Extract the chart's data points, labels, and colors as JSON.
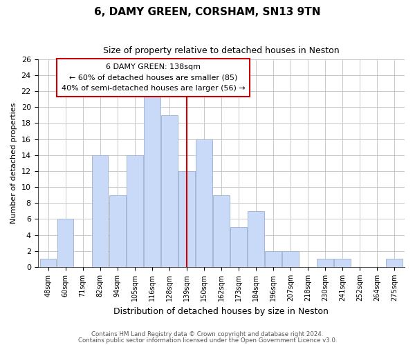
{
  "title": "6, DAMY GREEN, CORSHAM, SN13 9TN",
  "subtitle": "Size of property relative to detached houses in Neston",
  "xlabel": "Distribution of detached houses by size in Neston",
  "ylabel": "Number of detached properties",
  "bar_labels": [
    "48sqm",
    "60sqm",
    "71sqm",
    "82sqm",
    "94sqm",
    "105sqm",
    "116sqm",
    "128sqm",
    "139sqm",
    "150sqm",
    "162sqm",
    "173sqm",
    "184sqm",
    "196sqm",
    "207sqm",
    "218sqm",
    "230sqm",
    "241sqm",
    "252sqm",
    "264sqm",
    "275sqm"
  ],
  "bar_values": [
    1,
    6,
    0,
    14,
    9,
    14,
    22,
    19,
    12,
    16,
    9,
    5,
    7,
    2,
    2,
    0,
    1,
    1,
    0,
    0,
    1
  ],
  "bar_color": "#c9daf8",
  "bar_edge_color": "#a4b8d4",
  "highlight_index": 8,
  "highlight_line_color": "#cc0000",
  "ylim": [
    0,
    26
  ],
  "yticks": [
    0,
    2,
    4,
    6,
    8,
    10,
    12,
    14,
    16,
    18,
    20,
    22,
    24,
    26
  ],
  "annotation_title": "6 DAMY GREEN: 138sqm",
  "annotation_line1": "← 60% of detached houses are smaller (85)",
  "annotation_line2": "40% of semi-detached houses are larger (56) →",
  "annotation_box_edge": "#cc0000",
  "footer1": "Contains HM Land Registry data © Crown copyright and database right 2024.",
  "footer2": "Contains public sector information licensed under the Open Government Licence v3.0.",
  "background_color": "#ffffff",
  "grid_color": "#c8c8c8"
}
